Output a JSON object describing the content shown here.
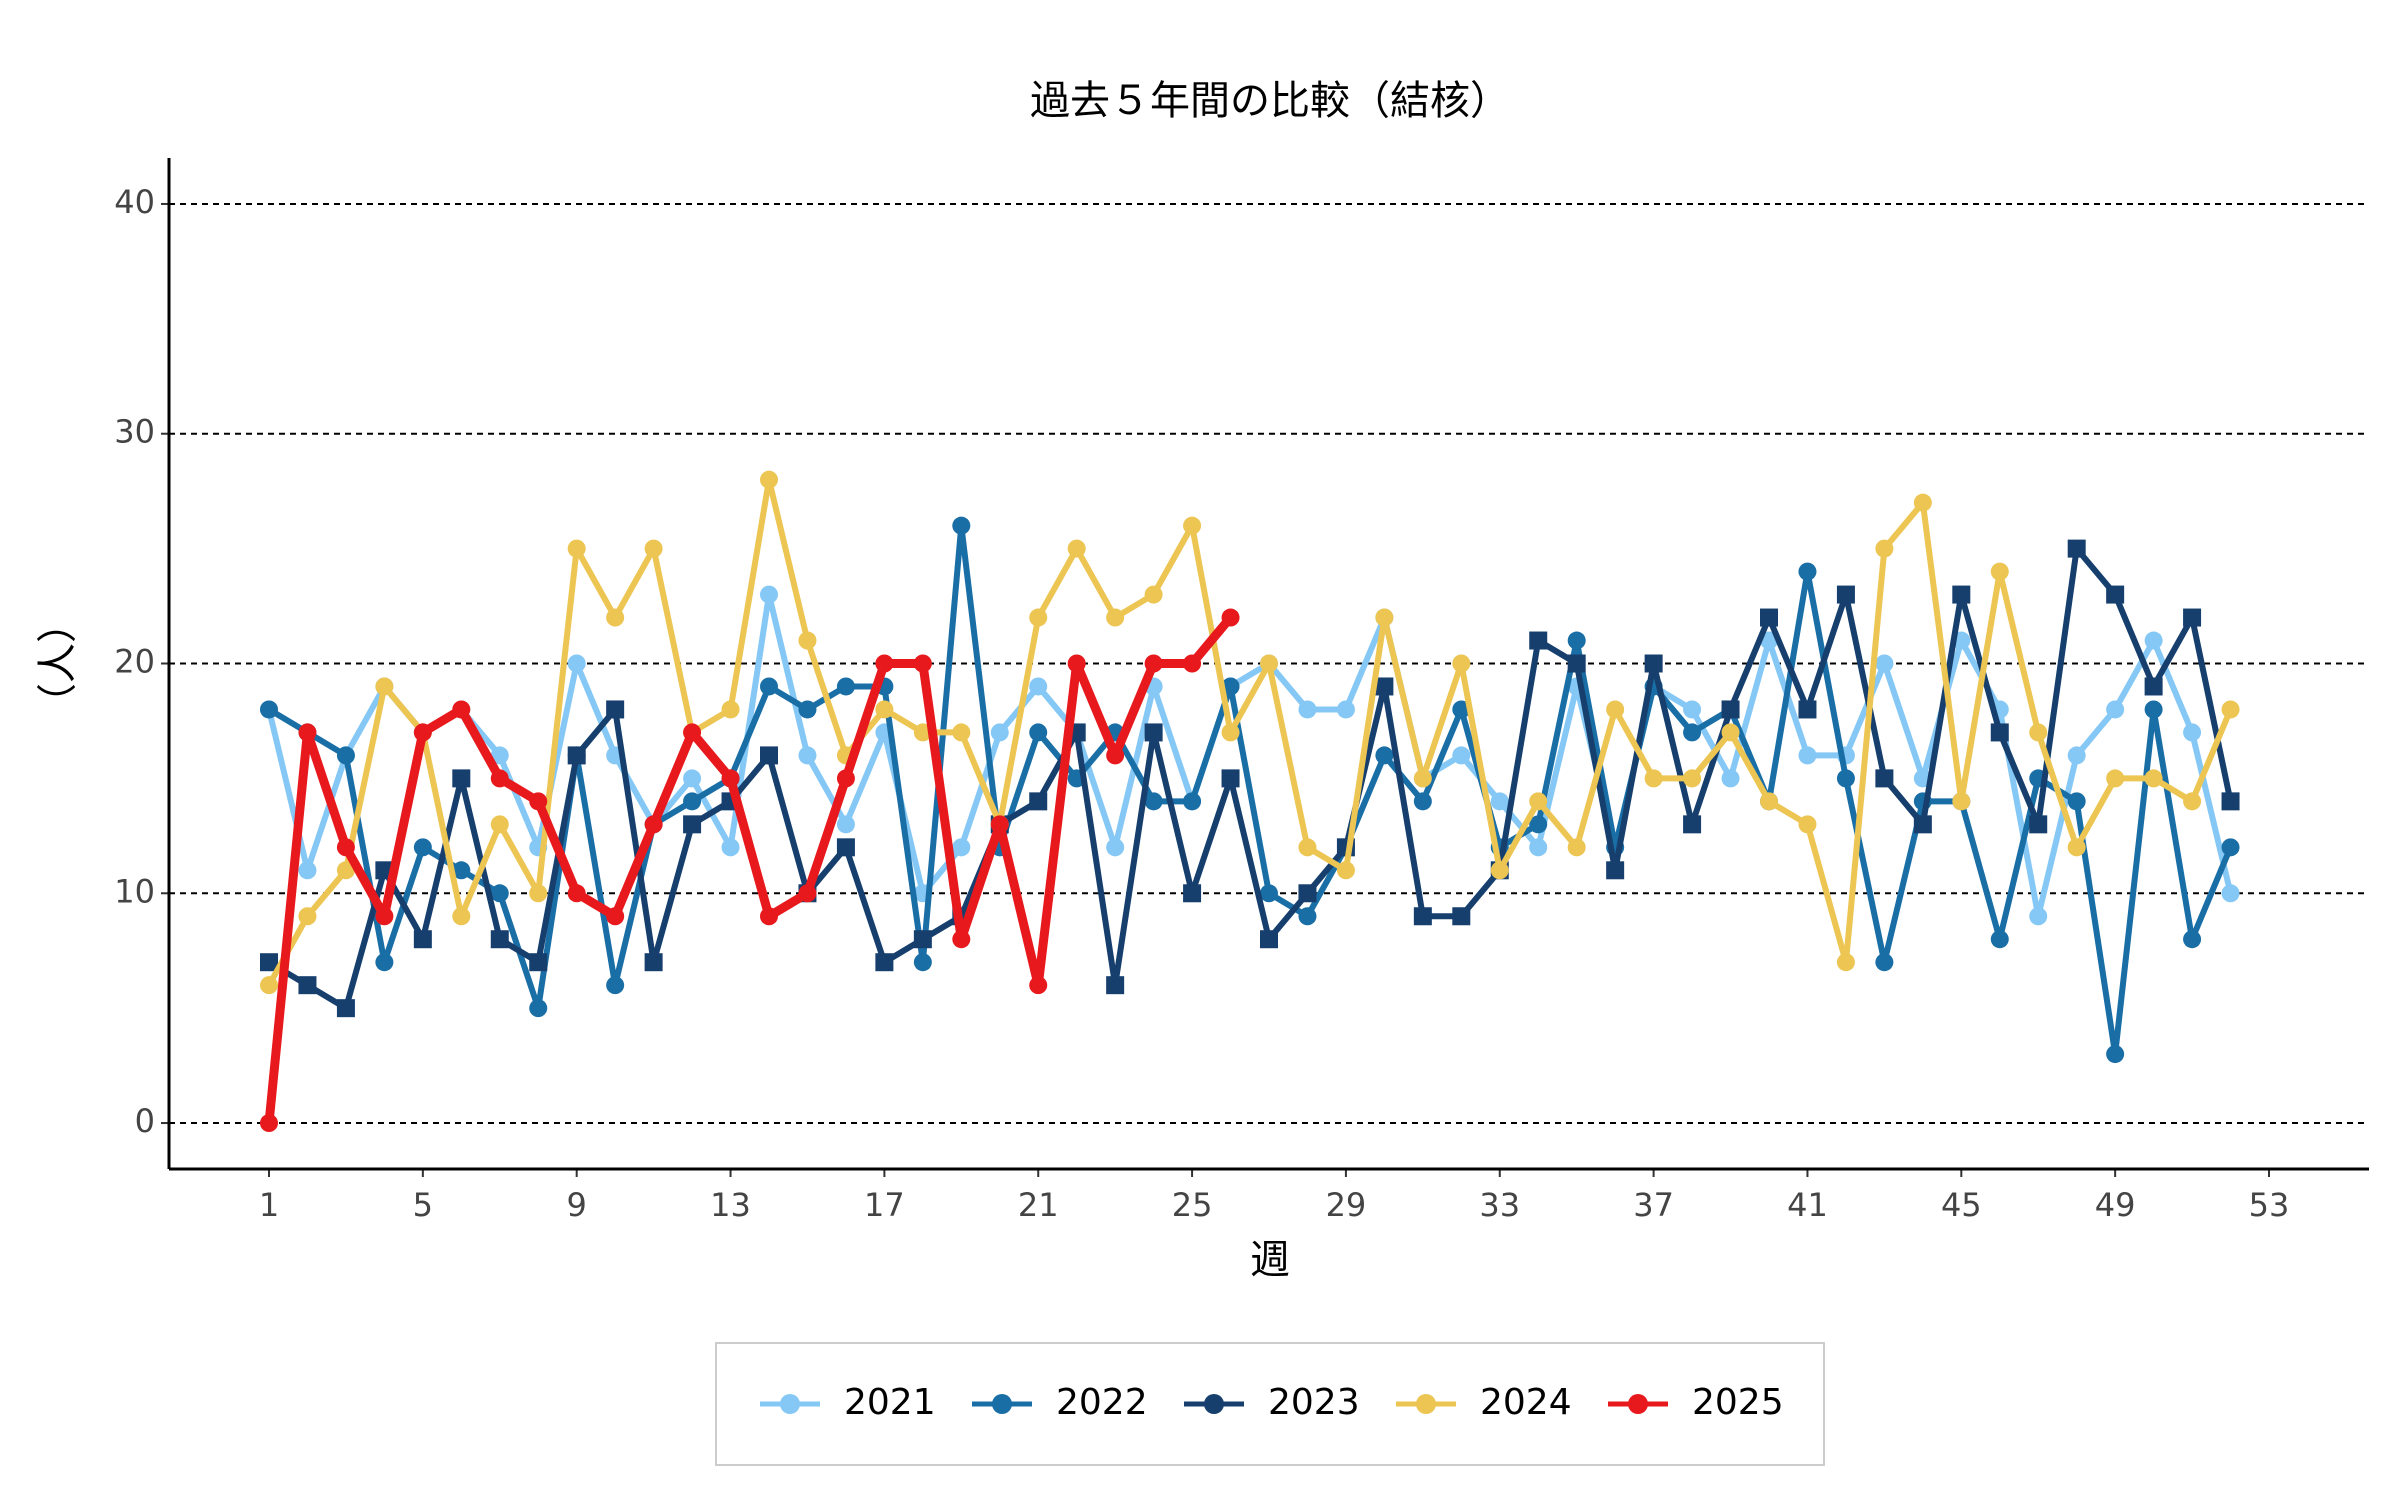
{
  "chart_data": {
    "type": "line",
    "title": "過去５年間の比較（結核）",
    "x_label": "週",
    "y_label": "（人）",
    "x": [
      1,
      2,
      3,
      4,
      5,
      6,
      7,
      8,
      9,
      10,
      11,
      12,
      13,
      14,
      15,
      16,
      17,
      18,
      19,
      20,
      21,
      22,
      23,
      24,
      25,
      26,
      27,
      28,
      29,
      30,
      31,
      32,
      33,
      34,
      35,
      36,
      37,
      38,
      39,
      40,
      41,
      42,
      43,
      44,
      45,
      46,
      47,
      48,
      49,
      50,
      51,
      52
    ],
    "series": [
      {
        "name": "2021",
        "color": "#85c8f5",
        "marker": "circle",
        "values": [
          18,
          11,
          16,
          19,
          17,
          18,
          16,
          12,
          20,
          16,
          13,
          15,
          12,
          23,
          16,
          13,
          17,
          10,
          12,
          17,
          19,
          17,
          12,
          19,
          14,
          19,
          20,
          18,
          18,
          22,
          15,
          16,
          14,
          12,
          19,
          12,
          19,
          18,
          15,
          21,
          16,
          16,
          20,
          15,
          21,
          18,
          9,
          16,
          18,
          21,
          17,
          10
        ]
      },
      {
        "name": "2022",
        "color": "#1a6ea6",
        "marker": "circle",
        "values": [
          18,
          17,
          16,
          7,
          12,
          11,
          10,
          5,
          16,
          6,
          13,
          14,
          15,
          19,
          18,
          19,
          19,
          7,
          26,
          12,
          17,
          15,
          17,
          14,
          14,
          19,
          10,
          9,
          12,
          16,
          14,
          18,
          12,
          13,
          21,
          12,
          19,
          17,
          18,
          14,
          24,
          15,
          7,
          14,
          14,
          8,
          15,
          14,
          3,
          18,
          8,
          12
        ]
      },
      {
        "name": "2023",
        "color": "#163f6e",
        "marker": "square",
        "values": [
          7,
          6,
          5,
          11,
          8,
          15,
          8,
          7,
          16,
          18,
          7,
          13,
          14,
          16,
          10,
          12,
          7,
          8,
          9,
          13,
          14,
          17,
          6,
          17,
          10,
          15,
          8,
          10,
          12,
          19,
          9,
          9,
          11,
          21,
          20,
          11,
          20,
          13,
          18,
          22,
          18,
          23,
          15,
          13,
          23,
          17,
          13,
          25,
          23,
          19,
          22,
          14
        ]
      },
      {
        "name": "2024",
        "color": "#ecc552",
        "marker": "circle",
        "values": [
          6,
          9,
          11,
          19,
          17,
          9,
          13,
          10,
          25,
          22,
          25,
          17,
          18,
          28,
          21,
          16,
          18,
          17,
          17,
          13,
          22,
          25,
          22,
          23,
          26,
          17,
          20,
          12,
          11,
          22,
          15,
          20,
          11,
          14,
          12,
          18,
          15,
          15,
          17,
          14,
          13,
          7,
          25,
          27,
          14,
          24,
          17,
          12,
          15,
          15,
          14,
          18
        ]
      },
      {
        "name": "2025",
        "color": "#e8191d",
        "marker": "circle",
        "values": [
          0,
          17,
          12,
          9,
          17,
          18,
          15,
          14,
          10,
          9,
          13,
          17,
          15,
          9,
          10,
          15,
          20,
          20,
          8,
          13,
          6,
          20,
          16,
          20,
          20,
          22,
          null,
          null,
          null,
          null,
          null,
          null,
          null,
          null,
          null,
          null,
          null,
          null,
          null,
          null,
          null,
          null,
          null,
          null,
          null,
          null,
          null,
          null,
          null,
          null,
          null,
          null
        ]
      }
    ],
    "xlim": [
      -1.6,
      55.6
    ],
    "ylim": [
      -2,
      42
    ],
    "xticks": [
      1,
      5,
      9,
      13,
      17,
      21,
      25,
      29,
      33,
      37,
      41,
      45,
      49,
      53
    ],
    "yticks": [
      0,
      10,
      20,
      30,
      40
    ],
    "grid": true,
    "legend": "bottom"
  }
}
